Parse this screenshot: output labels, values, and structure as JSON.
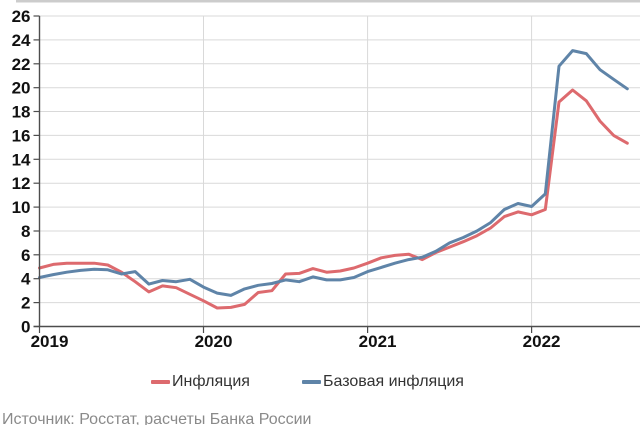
{
  "legend": {
    "series1_label": "Инфляция",
    "series2_label": "Базовая инфляция"
  },
  "source_note": "Источник: Росстат, расчеты Банка России",
  "colors": {
    "inflation": "#dd6a6e",
    "core_inflation": "#5f84a8",
    "grid": "#d9d9d9",
    "axis": "#4d4d4d",
    "tick_label": "#111111",
    "top_border": "#cccccc",
    "legend_text": "#333333",
    "source_text": "#8a8a8a"
  },
  "chart_data": {
    "type": "line",
    "x_months": [
      "2019-01",
      "2019-02",
      "2019-03",
      "2019-04",
      "2019-05",
      "2019-06",
      "2019-07",
      "2019-08",
      "2019-09",
      "2019-10",
      "2019-11",
      "2019-12",
      "2020-01",
      "2020-02",
      "2020-03",
      "2020-04",
      "2020-05",
      "2020-06",
      "2020-07",
      "2020-08",
      "2020-09",
      "2020-10",
      "2020-11",
      "2020-12",
      "2021-01",
      "2021-02",
      "2021-03",
      "2021-04",
      "2021-05",
      "2021-06",
      "2021-07",
      "2021-08",
      "2021-09",
      "2021-10",
      "2021-11",
      "2021-12",
      "2022-01",
      "2022-02",
      "2022-03",
      "2022-04",
      "2022-05",
      "2022-06",
      "2022-07",
      "2022-08"
    ],
    "series": [
      {
        "name": "Инфляция",
        "color_key": "inflation",
        "values": [
          4.9,
          5.2,
          5.3,
          5.3,
          5.3,
          5.15,
          4.55,
          3.75,
          2.9,
          3.4,
          3.25,
          2.7,
          2.15,
          1.55,
          1.6,
          1.85,
          2.85,
          3.0,
          4.4,
          4.45,
          4.85,
          4.55,
          4.65,
          4.9,
          5.3,
          5.75,
          5.95,
          6.05,
          5.6,
          6.2,
          6.65,
          7.1,
          7.6,
          8.25,
          9.2,
          9.6,
          9.35,
          9.8,
          18.8,
          19.8,
          18.9,
          17.2,
          16.0,
          15.35
        ]
      },
      {
        "name": "Базовая инфляция",
        "color_key": "core_inflation",
        "values": [
          4.1,
          4.35,
          4.55,
          4.7,
          4.8,
          4.75,
          4.4,
          4.6,
          3.55,
          3.85,
          3.75,
          3.95,
          3.3,
          2.8,
          2.6,
          3.15,
          3.45,
          3.6,
          3.9,
          3.75,
          4.15,
          3.9,
          3.9,
          4.1,
          4.6,
          4.95,
          5.3,
          5.6,
          5.8,
          6.3,
          7.0,
          7.45,
          8.0,
          8.7,
          9.8,
          10.3,
          10.05,
          11.1,
          21.8,
          23.1,
          22.85,
          21.5,
          20.7,
          19.9
        ]
      }
    ],
    "y_ticks": [
      0,
      2,
      4,
      6,
      8,
      10,
      12,
      14,
      16,
      18,
      20,
      22,
      24,
      26
    ],
    "ylim": [
      0,
      26
    ],
    "x_tick_labels": [
      "2019",
      "2020",
      "2021",
      "2022"
    ],
    "x_tick_month_positions": [
      0,
      12,
      24,
      36
    ],
    "x_gridline_month_positions": [
      12,
      24,
      36
    ],
    "grid": "horizontal lines at every 2 units, vertical lines at each January",
    "legend_position": "bottom"
  }
}
